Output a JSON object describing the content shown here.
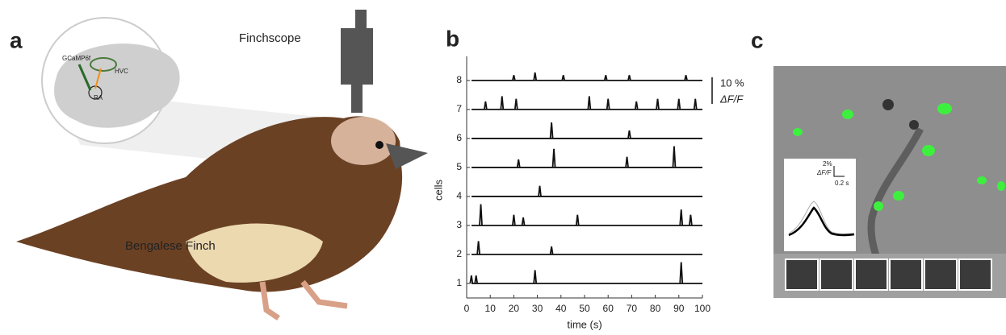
{
  "panel_a": {
    "label": "a",
    "device": "Finchscope",
    "species": "Bengalese Finch",
    "indicator": "GCaMP6f",
    "region_hvc": "HVC",
    "region_ra": "RA"
  },
  "chart_data": {
    "type": "line",
    "panel_label": "b",
    "xlabel": "time (s)",
    "ylabel": "cells",
    "xlim": [
      0,
      100
    ],
    "xticks": [
      0,
      10,
      20,
      30,
      40,
      50,
      60,
      70,
      80,
      90,
      100
    ],
    "ylim": [
      0.5,
      8.83
    ],
    "yticks": [
      1,
      2,
      3,
      4,
      5,
      6,
      7,
      8
    ],
    "scale_bar": {
      "value": 10,
      "label": "10 %"
    },
    "scale_unit": "ΔF/F",
    "color": "#111111",
    "cells": [
      {
        "x": [
          2,
          4,
          29,
          91
        ],
        "values": [
          3,
          3,
          5,
          8
        ]
      },
      {
        "x": [
          5,
          36
        ],
        "values": [
          5,
          3
        ]
      },
      {
        "x": [
          6,
          20,
          24,
          47,
          91,
          95
        ],
        "values": [
          8,
          4,
          3,
          4,
          6,
          4
        ]
      },
      {
        "x": [
          31
        ],
        "values": [
          4
        ]
      },
      {
        "x": [
          22,
          37,
          68,
          88
        ],
        "values": [
          3,
          7,
          4,
          8
        ]
      },
      {
        "x": [
          36,
          69
        ],
        "values": [
          6,
          3
        ]
      },
      {
        "x": [
          8,
          15,
          21,
          52,
          60,
          72,
          81,
          90,
          97
        ],
        "values": [
          3,
          5,
          4,
          5,
          4,
          3,
          4,
          4,
          4
        ]
      },
      {
        "x": [
          20,
          29,
          41,
          59,
          69,
          93
        ],
        "values": [
          2,
          3,
          2,
          2,
          2,
          2
        ]
      }
    ]
  },
  "panel_c": {
    "label": "c",
    "inset_scale_y": "2%",
    "inset_scale_unit": "ΔF/F",
    "inset_scale_x": "0.2 s"
  }
}
